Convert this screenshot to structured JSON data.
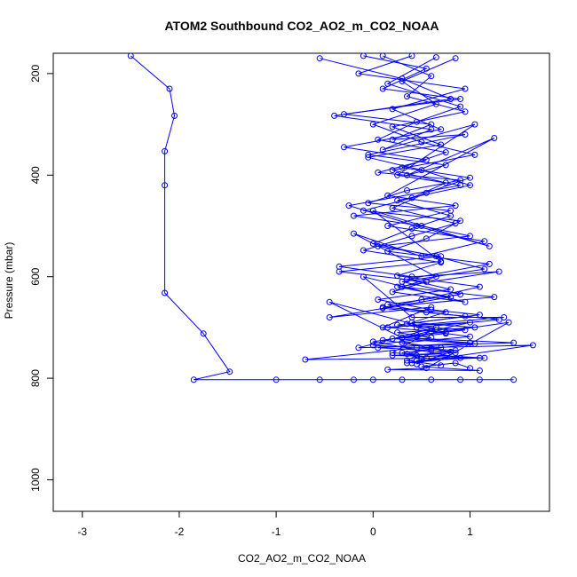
{
  "chart_data": {
    "type": "line",
    "title": "ATOM2 Southbound CO2_AO2_m_CO2_NOAA",
    "xlabel": "CO2_AO2_m_CO2_NOAA",
    "ylabel": "Pressure (mbar)",
    "xlim": [
      -3.3,
      1.82
    ],
    "ylim": [
      160,
      1062
    ],
    "y_inverted": true,
    "x_ticks": [
      -3,
      -2,
      -1,
      0,
      1
    ],
    "y_ticks": [
      200,
      400,
      600,
      800,
      1000
    ],
    "colors": {
      "series": "#0000ff",
      "axis": "#000000",
      "background": "#ffffff"
    },
    "marker": "open-circle",
    "grid": false,
    "series": [
      {
        "x": [
          -2.5,
          -2.1,
          -2.05,
          -2.15,
          -2.15,
          -2.15,
          -1.75,
          -1.48,
          -1.85,
          -1.0,
          -0.55,
          -0.2,
          0.0,
          0.3,
          0.6,
          0.9,
          1.1,
          1.45
        ],
        "y": [
          165,
          230,
          283,
          353,
          420,
          632,
          712,
          787,
          803,
          803,
          803,
          803,
          803,
          803,
          803,
          803,
          803,
          803
        ]
      },
      {
        "x": [
          -0.1,
          0.55,
          0.1,
          0.9,
          -0.3,
          0.6,
          0.2,
          0.95,
          -0.05,
          0.75,
          0.35,
          1.25,
          0.15,
          0.85,
          -0.2,
          0.5,
          1.0,
          0.05,
          0.7,
          -0.35,
          0.4,
          1.3,
          0.25,
          0.8,
          -0.45,
          0.6,
          0.1,
          1.0,
          0.3,
          1.45,
          -0.15,
          0.65,
          0.2,
          1.15,
          -0.7,
          0.45,
          1.65,
          0.35,
          0.9,
          0.0,
          1.4,
          0.55,
          0.15,
          1.1,
          0.5,
          0.85,
          1.0
        ],
        "y": [
          165,
          190,
          230,
          250,
          280,
          300,
          330,
          320,
          360,
          380,
          400,
          327,
          440,
          460,
          480,
          500,
          520,
          540,
          560,
          580,
          600,
          590,
          620,
          640,
          680,
          660,
          700,
          690,
          720,
          730,
          740,
          700,
          750,
          760,
          763,
          740,
          735,
          770,
          760,
          728,
          690,
          780,
          783,
          785,
          777,
          770,
          780
        ]
      },
      {
        "x": [
          -0.55,
          0.3,
          0.8,
          -0.4,
          0.6,
          0.1,
          1.05,
          0.25,
          0.9,
          -0.25,
          0.45,
          1.2,
          0.0,
          0.7,
          -0.35,
          0.55,
          0.2,
          0.95,
          -0.1,
          0.4,
          1.35,
          0.15,
          0.75,
          -0.45,
          0.3,
          1.0,
          0.05,
          0.6,
          0.85,
          0.2,
          1.1,
          0.45
        ],
        "y": [
          170,
          210,
          250,
          283,
          310,
          350,
          300,
          400,
          420,
          460,
          500,
          540,
          470,
          570,
          590,
          610,
          630,
          650,
          600,
          680,
          680,
          700,
          710,
          650,
          720,
          730,
          740,
          745,
          750,
          755,
          760,
          765
        ]
      },
      {
        "x": [
          0.4,
          -0.15,
          0.95,
          0.2,
          0.7,
          -0.3,
          0.55,
          0.05,
          0.9,
          0.35,
          -0.05,
          0.8,
          0.15,
          1.15,
          0.5,
          -0.2,
          0.65,
          0.3,
          1.25,
          0.1,
          0.75,
          0.4,
          1.05,
          0.25,
          0.6,
          0.0,
          0.85,
          0.45,
          0.35,
          0.7
        ],
        "y": [
          165,
          200,
          230,
          270,
          310,
          345,
          370,
          395,
          410,
          430,
          455,
          470,
          500,
          530,
          560,
          515,
          600,
          620,
          640,
          660,
          670,
          690,
          700,
          710,
          720,
          735,
          745,
          755,
          765,
          775
        ]
      },
      {
        "x": [
          0.85,
          0.3,
          0.65,
          0.0,
          0.5,
          1.05,
          0.2,
          0.75,
          0.4,
          -0.1,
          0.9,
          0.55,
          0.15,
          1.2,
          0.35,
          0.8,
          0.05,
          0.6,
          1.1,
          0.25,
          0.95,
          0.45,
          0.1,
          0.7,
          0.3,
          0.55,
          0.4
        ],
        "y": [
          170,
          215,
          260,
          300,
          335,
          360,
          390,
          415,
          445,
          470,
          490,
          525,
          550,
          575,
          605,
          625,
          645,
          665,
          675,
          695,
          705,
          715,
          725,
          740,
          750,
          760,
          770
        ]
      },
      {
        "x": [
          0.1,
          0.6,
          0.35,
          0.95,
          0.2,
          0.7,
          -0.05,
          0.5,
          1.0,
          0.25,
          0.8,
          0.4,
          0.0,
          0.65,
          1.15,
          0.3,
          0.9,
          0.15,
          0.55,
          1.3,
          0.45,
          0.75,
          0.2,
          1.05,
          0.6,
          0.35,
          0.5
        ],
        "y": [
          165,
          205,
          245,
          275,
          305,
          340,
          365,
          390,
          420,
          450,
          480,
          505,
          535,
          560,
          585,
          610,
          635,
          655,
          670,
          685,
          700,
          712,
          722,
          732,
          742,
          752,
          762
        ]
      },
      {
        "x": [
          0.65,
          0.15,
          0.9,
          0.45,
          0.05,
          0.75,
          0.3,
          1.0,
          0.55,
          0.2,
          0.85,
          0.4,
          -0.1,
          0.7,
          0.25,
          1.1,
          0.5,
          0.1,
          0.95,
          0.35,
          0.6,
          1.0,
          0.3,
          0.8,
          0.45
        ],
        "y": [
          168,
          220,
          265,
          295,
          330,
          355,
          385,
          405,
          435,
          465,
          495,
          520,
          548,
          572,
          598,
          620,
          645,
          662,
          678,
          693,
          708,
          718,
          730,
          748,
          772
        ]
      }
    ]
  }
}
